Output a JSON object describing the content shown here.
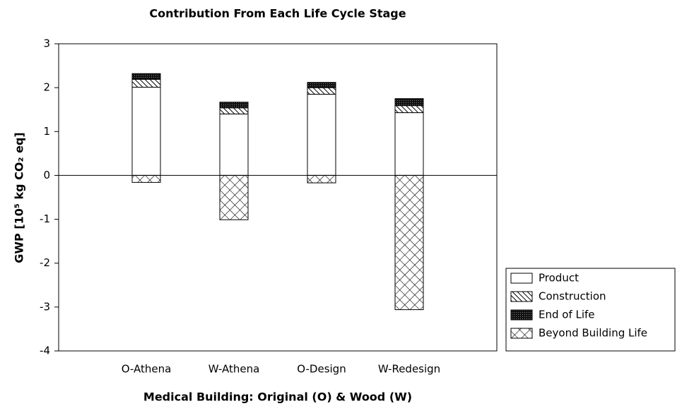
{
  "chart_data": {
    "type": "bar",
    "stacked": true,
    "title": "Contribution From Each Life Cycle Stage",
    "xlabel": "Medical Building: Original (O) & Wood (W)",
    "ylabel": "GWP [10⁵ kg CO₂ eq]",
    "categories": [
      "O-Athena",
      "W-Athena",
      "O-Design",
      "W-Redesign"
    ],
    "series": [
      {
        "name": "Product",
        "color": "#ffffff",
        "pattern": "none",
        "values": [
          2.01,
          1.4,
          1.85,
          1.43
        ]
      },
      {
        "name": "Construction",
        "color": "#000000",
        "pattern": "diagonal",
        "values": [
          0.18,
          0.14,
          0.15,
          0.16
        ]
      },
      {
        "name": "End of Life",
        "color": "#000000",
        "pattern": "dots",
        "values": [
          0.13,
          0.13,
          0.12,
          0.16
        ]
      },
      {
        "name": "Beyond Building Life",
        "color": "#000000",
        "pattern": "crosshatch",
        "values": [
          -0.16,
          -1.01,
          -0.17,
          -3.06
        ]
      }
    ],
    "ylim": [
      -4,
      3
    ],
    "yticks": [
      -4,
      -3,
      -2,
      -1,
      0,
      1,
      2,
      3
    ],
    "legend": "lower right",
    "grid": false
  }
}
